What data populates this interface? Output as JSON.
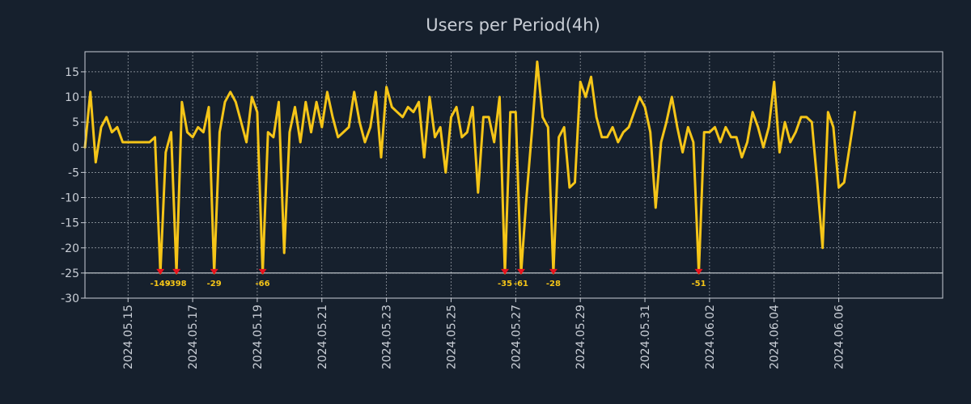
{
  "chart_data": {
    "type": "line",
    "title": "Users per Period(4h)",
    "xlabel": "",
    "ylabel": "",
    "ylim": [
      -30,
      19
    ],
    "xlim": [
      0,
      159.3
    ],
    "y_ticks": [
      -30,
      -25,
      -20,
      -15,
      -10,
      -5,
      0,
      5,
      10,
      15
    ],
    "x_ticks": [
      {
        "x": 8,
        "label": "2024.05.15"
      },
      {
        "x": 20,
        "label": "2024.05.17"
      },
      {
        "x": 32,
        "label": "2024.05.19"
      },
      {
        "x": 44,
        "label": "2024.05.21"
      },
      {
        "x": 56,
        "label": "2024.05.23"
      },
      {
        "x": 68,
        "label": "2024.05.25"
      },
      {
        "x": 80,
        "label": "2024.05.27"
      },
      {
        "x": 92,
        "label": "2024.05.29"
      },
      {
        "x": 104,
        "label": "2024.05.31"
      },
      {
        "x": 116,
        "label": "2024.06.02"
      },
      {
        "x": 128,
        "label": "2024.06.04"
      },
      {
        "x": 140,
        "label": "2024.06.06"
      }
    ],
    "clip_value": -25,
    "grid": true,
    "series": [
      {
        "name": "Users",
        "color": "#f5c518",
        "values": [
          0,
          11,
          -3,
          4,
          6,
          3,
          4,
          1,
          1,
          1,
          1,
          1,
          1,
          2,
          -25,
          -1,
          3,
          -25,
          9,
          3,
          2,
          4,
          3,
          8,
          -25,
          3,
          9,
          11,
          9,
          5,
          1,
          10,
          7,
          -25,
          3,
          2,
          9,
          -21,
          3,
          8,
          1,
          9,
          3,
          9,
          4,
          11,
          6,
          2,
          3,
          4,
          11,
          5,
          1,
          4,
          11,
          -2,
          12,
          8,
          7,
          6,
          8,
          7,
          9,
          -2,
          10,
          2,
          4,
          -5,
          6,
          8,
          2,
          3,
          8,
          -9,
          6,
          6,
          1,
          10,
          -25,
          7,
          7,
          -25,
          -10,
          3,
          17,
          6,
          4,
          -25,
          2,
          4,
          -8,
          -7,
          13,
          10,
          14,
          6,
          2,
          2,
          4,
          1,
          3,
          4,
          7,
          10,
          8,
          3,
          -12,
          1,
          5,
          10,
          4,
          -1,
          4,
          1,
          -25,
          3,
          3,
          4,
          1,
          4,
          2,
          2,
          -2,
          1,
          7,
          4,
          0,
          4,
          13,
          -1,
          5,
          1,
          3,
          6,
          6,
          5,
          -7,
          -20,
          7,
          4,
          -8,
          -7,
          0,
          7
        ]
      }
    ],
    "clipped_points": [
      {
        "index": 14,
        "label": "-149"
      },
      {
        "index": 17,
        "label": "-398"
      },
      {
        "index": 24,
        "label": "-29"
      },
      {
        "index": 33,
        "label": "-66"
      },
      {
        "index": 78,
        "label": "-35"
      },
      {
        "index": 81,
        "label": "-61"
      },
      {
        "index": 87,
        "label": "-28"
      },
      {
        "index": 114,
        "label": "-51"
      }
    ]
  }
}
